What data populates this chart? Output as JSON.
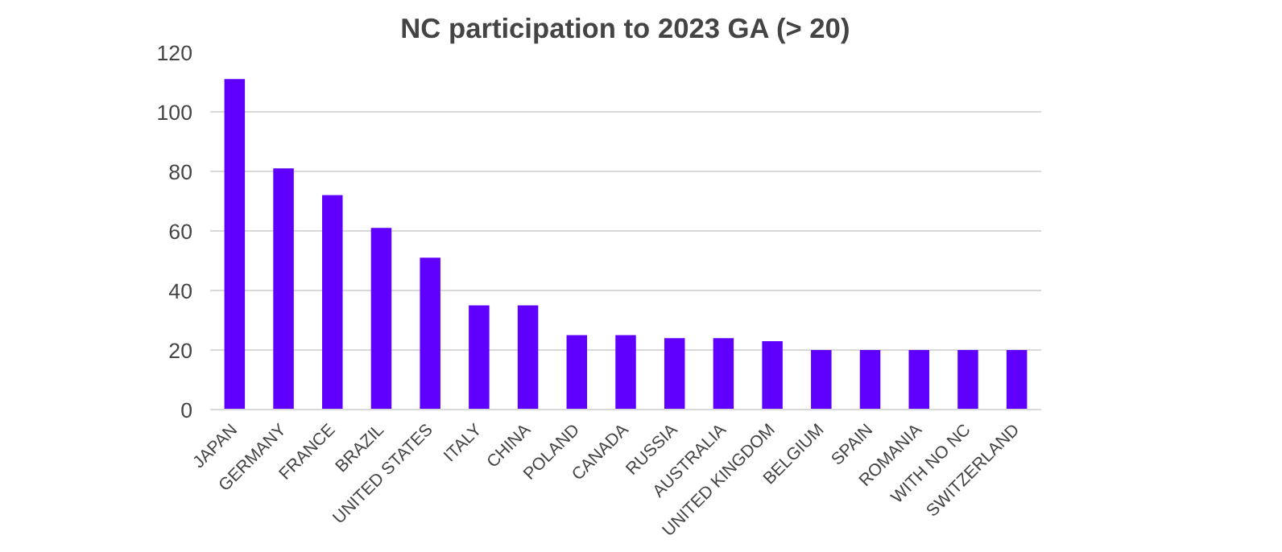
{
  "chart_data": {
    "type": "bar",
    "title": "NC participation to 2023 GA (> 20)",
    "categories": [
      "JAPAN",
      "GERMANY",
      "FRANCE",
      "BRAZIL",
      "UNITED STATES",
      "ITALY",
      "CHINA",
      "POLAND",
      "CANADA",
      "RUSSIA",
      "AUSTRALIA",
      "UNITED KINGDOM",
      "BELGIUM",
      "SPAIN",
      "ROMANIA",
      "WITH NO NC",
      "SWITZERLAND"
    ],
    "values": [
      111,
      81,
      72,
      61,
      51,
      35,
      35,
      25,
      25,
      24,
      24,
      23,
      20,
      20,
      20,
      20,
      20
    ],
    "color": "#5f00ff",
    "ylim": [
      0,
      120
    ],
    "yticks": [
      0,
      20,
      40,
      60,
      80,
      100,
      120
    ],
    "grid": "y"
  }
}
